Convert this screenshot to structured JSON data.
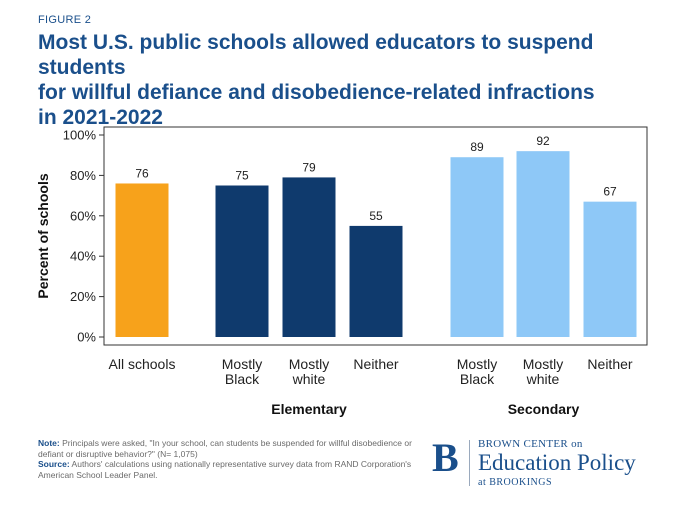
{
  "figure_label": "FIGURE 2",
  "title_lines": [
    "Most U.S. public schools allowed educators to suspend students",
    "for willful defiance and disobedience-related infractions",
    "in 2021-2022"
  ],
  "chart_data": {
    "type": "bar",
    "ylabel": "Percent of schools",
    "ylim": [
      0,
      100
    ],
    "yticks": [
      "0%",
      "20%",
      "40%",
      "60%",
      "80%",
      "100%"
    ],
    "grid": false,
    "groups": [
      {
        "name": "",
        "bars": [
          {
            "label": [
              "All schools"
            ],
            "value": 76,
            "color": "#f7a21b"
          }
        ]
      },
      {
        "name": "Elementary",
        "bars": [
          {
            "label": [
              "Mostly",
              "Black"
            ],
            "value": 75,
            "color": "#0f3a6d"
          },
          {
            "label": [
              "Mostly",
              "white"
            ],
            "value": 79,
            "color": "#0f3a6d"
          },
          {
            "label": [
              "Neither"
            ],
            "value": 55,
            "color": "#0f3a6d"
          }
        ]
      },
      {
        "name": "Secondary",
        "bars": [
          {
            "label": [
              "Mostly",
              "Black"
            ],
            "value": 89,
            "color": "#8ec8f7"
          },
          {
            "label": [
              "Mostly",
              "white"
            ],
            "value": 92,
            "color": "#8ec8f7"
          },
          {
            "label": [
              "Neither"
            ],
            "value": 67,
            "color": "#8ec8f7"
          }
        ]
      }
    ]
  },
  "footnote": {
    "note_label": "Note:",
    "note_text": " Principals were asked, \"In your school, can students be suspended for willful disobedience or defiant or disruptive behavior?\" (N= 1,075)",
    "source_label": "Source:",
    "source_text": " Authors' calculations using nationally representative survey data from RAND Corporation's American School Leader Panel."
  },
  "logo": {
    "letter": "B",
    "top": "BROWN CENTER on",
    "middle": "Education Policy",
    "bottom": "at BROOKINGS"
  }
}
